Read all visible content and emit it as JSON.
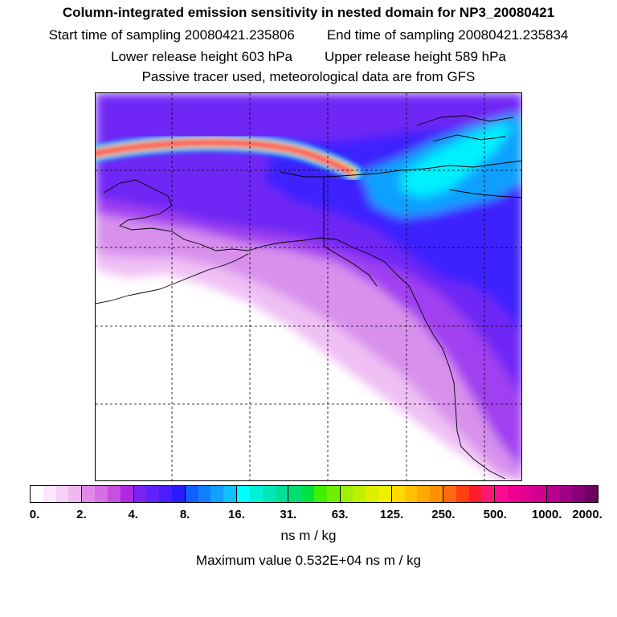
{
  "header": {
    "title": "Column-integrated emission sensitivity in nested domain for NP3_20080421",
    "start_label": "Start time of sampling 20080421.235806",
    "end_label": "End time of sampling 20080421.235834",
    "lower_label": "Lower release height  603 hPa",
    "upper_label": "Upper release height  589 hPa",
    "note": "Passive tracer used, meteorological data are from GFS"
  },
  "legend": {
    "ticks": [
      "0.",
      "2.",
      "4.",
      "8.",
      "16.",
      "31.",
      "63.",
      "125.",
      "250.",
      "500.",
      "1000.",
      "2000."
    ],
    "colors": [
      [
        "#ffffff",
        "#fbe6fb",
        "#f6d0f6",
        "#f0b8f0"
      ],
      [
        "#e08ae8",
        "#d66ee4",
        "#c84ee0",
        "#b028e0"
      ],
      [
        "#7a24f0",
        "#6020ff",
        "#4a1cff",
        "#2c1aff"
      ],
      [
        "#1060ff",
        "#1080ff",
        "#10a0ff",
        "#10c0ff"
      ],
      [
        "#00ffff",
        "#00f0d8",
        "#00e8b8",
        "#00e098"
      ],
      [
        "#00e070",
        "#00e040",
        "#40f000",
        "#70f000"
      ],
      [
        "#a0f000",
        "#c0f000",
        "#dcf000",
        "#f0f000"
      ],
      [
        "#ffd800",
        "#ffc000",
        "#ffa800",
        "#ff9000"
      ],
      [
        "#ff6a10",
        "#ff4010",
        "#ff1c30",
        "#ff1a70"
      ],
      [
        "#ff0a90",
        "#f00090",
        "#e00090",
        "#d00090"
      ],
      [
        "#b80090",
        "#a00088",
        "#880078",
        "#700060"
      ]
    ],
    "units": "ns m / kg",
    "max_value": "Maximum value  0.532E+04 ns m / kg"
  },
  "map_colors": {
    "background": "#ffffff",
    "pale": "#f0c0f4",
    "light_violet": "#d890ec",
    "violet": "#a040f0",
    "purple": "#7028f4",
    "blue": "#3c22ff",
    "sky": "#10a0ff",
    "cyan": "#00f0ff",
    "plume_core": "#ff1a70",
    "plume_mid": "#ffc000",
    "plume_edge": "#10c0ff"
  }
}
